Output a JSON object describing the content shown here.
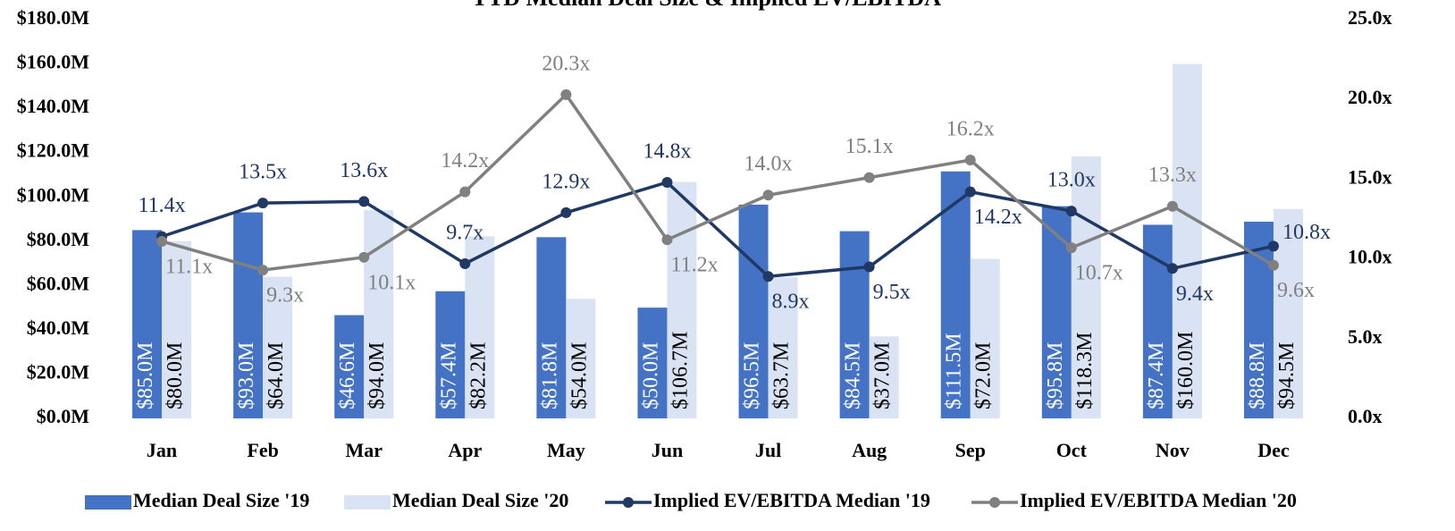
{
  "chart_data": {
    "type": "bar",
    "title": "YTD Median Deal Size & Implied EV/EBITDA",
    "categories": [
      "Jan",
      "Feb",
      "Mar",
      "Apr",
      "May",
      "Jun",
      "Jul",
      "Aug",
      "Sep",
      "Oct",
      "Nov",
      "Dec"
    ],
    "series": [
      {
        "name": "Median Deal Size '19",
        "type": "bar",
        "color": "#4472c4",
        "values": [
          85.0,
          93.0,
          46.6,
          57.4,
          81.8,
          50.0,
          96.5,
          84.5,
          111.5,
          95.8,
          87.4,
          88.8
        ],
        "value_labels": [
          "$85.0M",
          "$93.0M",
          "$46.6M",
          "$57.4M",
          "$81.8M",
          "$50.0M",
          "$96.5M",
          "$84.5M",
          "$111.5M",
          "$95.8M",
          "$87.4M",
          "$88.8M"
        ]
      },
      {
        "name": "Median Deal Size '20",
        "type": "bar",
        "color": "#dae3f3",
        "values": [
          80.0,
          64.0,
          94.0,
          82.2,
          54.0,
          106.7,
          63.7,
          37.0,
          72.0,
          118.3,
          160.0,
          94.5
        ],
        "value_labels": [
          "$80.0M",
          "$64.0M",
          "$94.0M",
          "$82.2M",
          "$54.0M",
          "$106.7M",
          "$63.7M",
          "$37.0M",
          "$72.0M",
          "$118.3M",
          "$160.0M",
          "$94.5M"
        ]
      },
      {
        "name": "Implied EV/EBITDA Median '19",
        "type": "line",
        "axis": "y2",
        "color": "#1f3864",
        "values": [
          11.4,
          13.5,
          13.6,
          9.7,
          12.9,
          14.8,
          8.9,
          9.5,
          14.2,
          13.0,
          9.4,
          10.8
        ],
        "value_labels": [
          "11.4x",
          "13.5x",
          "13.6x",
          "9.7x",
          "12.9x",
          "14.8x",
          "8.9x",
          "9.5x",
          "14.2x",
          "13.0x",
          "9.4x",
          "10.8x"
        ]
      },
      {
        "name": "Implied EV/EBITDA Median '20",
        "type": "line",
        "axis": "y2",
        "color": "#808080",
        "values": [
          11.1,
          9.3,
          10.1,
          14.2,
          20.3,
          11.2,
          14.0,
          15.1,
          16.2,
          10.7,
          13.3,
          9.6
        ],
        "value_labels": [
          "11.1x",
          "9.3x",
          "10.1x",
          "14.2x",
          "20.3x",
          "11.2x",
          "14.0x",
          "15.1x",
          "16.2x",
          "10.7x",
          "13.3x",
          "9.6x"
        ]
      }
    ],
    "ylim": [
      0,
      180
    ],
    "yticks": [
      {
        "value": 0,
        "label": "$0.0M"
      },
      {
        "value": 20,
        "label": "$20.0M"
      },
      {
        "value": 40,
        "label": "$40.0M"
      },
      {
        "value": 60,
        "label": "$60.0M"
      },
      {
        "value": 80,
        "label": "$80.0M"
      },
      {
        "value": 100,
        "label": "$100.0M"
      },
      {
        "value": 120,
        "label": "$120.0M"
      },
      {
        "value": 140,
        "label": "$140.0M"
      },
      {
        "value": 160,
        "label": "$160.0M"
      },
      {
        "value": 180,
        "label": "$180.0M"
      }
    ],
    "y2lim": [
      0,
      25
    ],
    "y2ticks": [
      {
        "value": 0,
        "label": "0.0x"
      },
      {
        "value": 5,
        "label": "5.0x"
      },
      {
        "value": 10,
        "label": "10.0x"
      },
      {
        "value": 15,
        "label": "15.0x"
      },
      {
        "value": 20,
        "label": "20.0x"
      },
      {
        "value": 25,
        "label": "25.0x"
      }
    ],
    "legend": "bottom",
    "grid": false
  }
}
